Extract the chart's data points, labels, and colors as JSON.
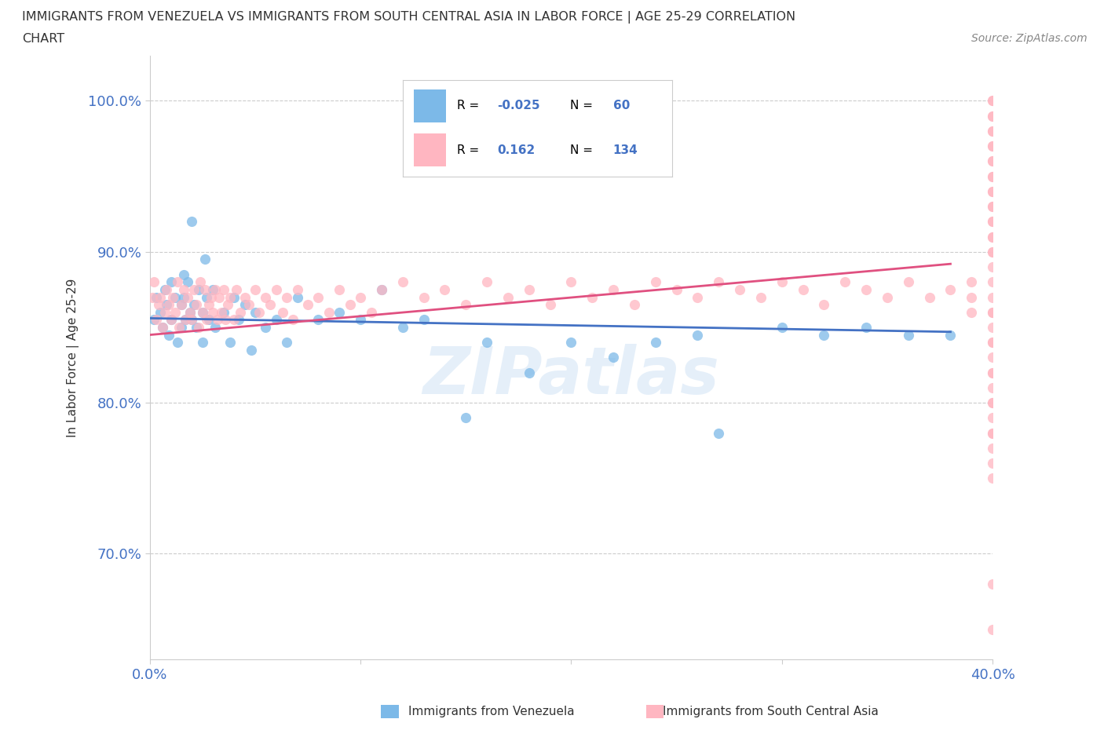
{
  "title_line1": "IMMIGRANTS FROM VENEZUELA VS IMMIGRANTS FROM SOUTH CENTRAL ASIA IN LABOR FORCE | AGE 25-29 CORRELATION",
  "title_line2": "CHART",
  "source_text": "Source: ZipAtlas.com",
  "ylabel": "In Labor Force | Age 25-29",
  "x_min": 0.0,
  "x_max": 0.4,
  "y_min": 0.63,
  "y_max": 1.03,
  "color_blue": "#7cb9e8",
  "color_pink": "#ffb6c1",
  "line_color_blue": "#4472c4",
  "line_color_pink": "#e05080",
  "background_color": "#ffffff",
  "grid_color": "#cccccc",
  "tick_color": "#4472c4",
  "blue_x": [
    0.002,
    0.003,
    0.005,
    0.006,
    0.007,
    0.008,
    0.009,
    0.01,
    0.01,
    0.012,
    0.013,
    0.015,
    0.015,
    0.016,
    0.016,
    0.017,
    0.018,
    0.019,
    0.02,
    0.02,
    0.021,
    0.022,
    0.023,
    0.025,
    0.025,
    0.026,
    0.027,
    0.028,
    0.03,
    0.031,
    0.035,
    0.038,
    0.04,
    0.042,
    0.045,
    0.048,
    0.05,
    0.055,
    0.06,
    0.065,
    0.07,
    0.08,
    0.09,
    0.1,
    0.11,
    0.12,
    0.13,
    0.15,
    0.16,
    0.18,
    0.2,
    0.22,
    0.24,
    0.26,
    0.27,
    0.3,
    0.32,
    0.34,
    0.36,
    0.38
  ],
  "blue_y": [
    0.855,
    0.87,
    0.86,
    0.85,
    0.875,
    0.865,
    0.845,
    0.88,
    0.855,
    0.87,
    0.84,
    0.865,
    0.85,
    0.885,
    0.87,
    0.855,
    0.88,
    0.86,
    0.92,
    0.855,
    0.865,
    0.85,
    0.875,
    0.86,
    0.84,
    0.895,
    0.87,
    0.855,
    0.875,
    0.85,
    0.86,
    0.84,
    0.87,
    0.855,
    0.865,
    0.835,
    0.86,
    0.85,
    0.855,
    0.84,
    0.87,
    0.855,
    0.86,
    0.855,
    0.875,
    0.85,
    0.855,
    0.79,
    0.84,
    0.82,
    0.84,
    0.83,
    0.84,
    0.845,
    0.78,
    0.85,
    0.845,
    0.85,
    0.845,
    0.845
  ],
  "pink_x": [
    0.001,
    0.002,
    0.003,
    0.004,
    0.005,
    0.006,
    0.007,
    0.008,
    0.009,
    0.01,
    0.011,
    0.012,
    0.013,
    0.014,
    0.015,
    0.016,
    0.017,
    0.018,
    0.019,
    0.02,
    0.021,
    0.022,
    0.023,
    0.024,
    0.025,
    0.026,
    0.027,
    0.028,
    0.029,
    0.03,
    0.031,
    0.032,
    0.033,
    0.034,
    0.035,
    0.036,
    0.037,
    0.038,
    0.04,
    0.041,
    0.043,
    0.045,
    0.047,
    0.05,
    0.052,
    0.055,
    0.057,
    0.06,
    0.063,
    0.065,
    0.068,
    0.07,
    0.075,
    0.08,
    0.085,
    0.09,
    0.095,
    0.1,
    0.105,
    0.11,
    0.12,
    0.13,
    0.14,
    0.15,
    0.16,
    0.17,
    0.18,
    0.19,
    0.2,
    0.21,
    0.22,
    0.23,
    0.24,
    0.25,
    0.26,
    0.27,
    0.28,
    0.29,
    0.3,
    0.31,
    0.32,
    0.33,
    0.34,
    0.35,
    0.36,
    0.37,
    0.38,
    0.39,
    0.39,
    0.39,
    0.4,
    0.4,
    0.4,
    0.4,
    0.4,
    0.4,
    0.4,
    0.4,
    0.4,
    0.4,
    0.4,
    0.4,
    0.4,
    0.4,
    0.4,
    0.4,
    0.4,
    0.4,
    0.4,
    0.4,
    0.4,
    0.4,
    0.4,
    0.4,
    0.4,
    0.4,
    0.4,
    0.4,
    0.4,
    0.4,
    0.4,
    0.4,
    0.4,
    0.4,
    0.4,
    0.4,
    0.4,
    0.4,
    0.4,
    0.4,
    0.4,
    0.4,
    0.4,
    0.4
  ],
  "pink_y": [
    0.87,
    0.88,
    0.855,
    0.865,
    0.87,
    0.85,
    0.86,
    0.875,
    0.865,
    0.855,
    0.87,
    0.86,
    0.88,
    0.85,
    0.865,
    0.875,
    0.855,
    0.87,
    0.86,
    0.855,
    0.875,
    0.865,
    0.85,
    0.88,
    0.86,
    0.875,
    0.855,
    0.865,
    0.87,
    0.86,
    0.875,
    0.855,
    0.87,
    0.86,
    0.875,
    0.855,
    0.865,
    0.87,
    0.855,
    0.875,
    0.86,
    0.87,
    0.865,
    0.875,
    0.86,
    0.87,
    0.865,
    0.875,
    0.86,
    0.87,
    0.855,
    0.875,
    0.865,
    0.87,
    0.86,
    0.875,
    0.865,
    0.87,
    0.86,
    0.875,
    0.88,
    0.87,
    0.875,
    0.865,
    0.88,
    0.87,
    0.875,
    0.865,
    0.88,
    0.87,
    0.875,
    0.865,
    0.88,
    0.875,
    0.87,
    0.88,
    0.875,
    0.87,
    0.88,
    0.875,
    0.865,
    0.88,
    0.875,
    0.87,
    0.88,
    0.87,
    0.875,
    0.88,
    0.87,
    0.86,
    0.9,
    0.91,
    0.92,
    0.93,
    0.94,
    0.95,
    0.96,
    0.97,
    0.98,
    0.99,
    1.0,
    0.78,
    0.8,
    0.82,
    0.84,
    0.86,
    0.88,
    0.9,
    0.92,
    0.94,
    0.96,
    0.98,
    1.0,
    0.75,
    0.77,
    0.79,
    0.81,
    0.83,
    0.85,
    0.87,
    0.89,
    0.91,
    0.93,
    0.95,
    0.97,
    0.99,
    0.8,
    0.82,
    0.84,
    0.86,
    0.68,
    0.78,
    0.65,
    0.76
  ],
  "blue_line_x": [
    0.0,
    0.38
  ],
  "blue_line_y": [
    0.856,
    0.847
  ],
  "pink_line_x": [
    0.0,
    0.38
  ],
  "pink_line_y": [
    0.845,
    0.892
  ]
}
